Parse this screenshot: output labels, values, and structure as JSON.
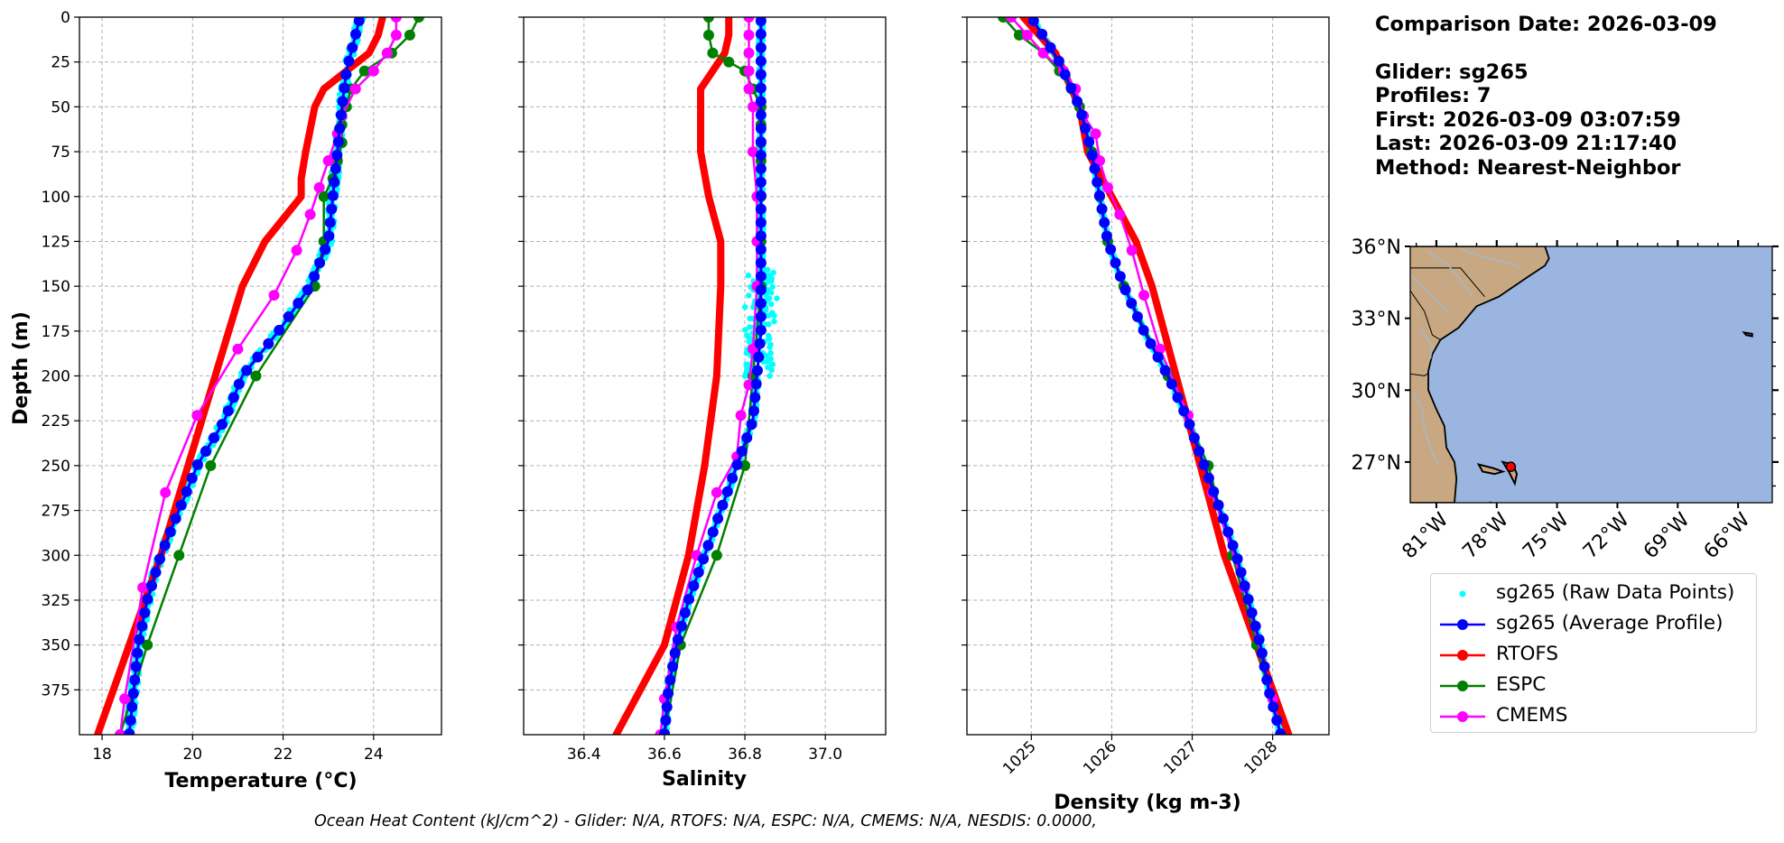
{
  "info": {
    "comparison_date": "Comparison Date: 2026-03-09",
    "glider": "Glider: sg265",
    "profiles": "Profiles: 7",
    "first": "First: 2026-03-09 03:07:59",
    "last": "Last: 2026-03-09 21:17:40",
    "method": "Method: Nearest-Neighbor"
  },
  "footer": "Ocean Heat Content (kJ/cm^2) - Glider: N/A,  RTOFS: N/A,  ESPC: N/A,  CMEMS: N/A,  NESDIS: 0.0000,",
  "legend": [
    {
      "label": "sg265 (Raw Data Points)",
      "color": "#00ffff",
      "style": "dot"
    },
    {
      "label": "sg265 (Average Profile)",
      "color": "#0000ff",
      "style": "line-marker"
    },
    {
      "label": "RTOFS",
      "color": "#ff0000",
      "style": "line-marker"
    },
    {
      "label": "ESPC",
      "color": "#008000",
      "style": "line-marker"
    },
    {
      "label": "CMEMS",
      "color": "#ff00ff",
      "style": "line-marker"
    }
  ],
  "colors": {
    "raw": "#00ffff",
    "average": "#0000ff",
    "rtofs": "#ff0000",
    "espc": "#008000",
    "cmems": "#ff00ff",
    "land": "#c8a882",
    "ocean": "#99b5e0"
  },
  "chart_data": [
    {
      "type": "line",
      "xlabel": "Temperature (°C)",
      "ylabel": "Depth (m)",
      "xlim": [
        17.5,
        25.5
      ],
      "ylim": [
        400,
        0
      ],
      "xticks": [
        18,
        20,
        22,
        24
      ],
      "yticks": [
        0,
        25,
        50,
        75,
        100,
        125,
        150,
        175,
        200,
        225,
        250,
        275,
        300,
        325,
        350,
        375
      ],
      "grid": true,
      "series": [
        {
          "name": "RTOFS",
          "depth": [
            0,
            10,
            20,
            30,
            40,
            50,
            75,
            90,
            100,
            125,
            150,
            200,
            250,
            300,
            350,
            400
          ],
          "values": [
            24.2,
            24.1,
            23.9,
            23.4,
            22.9,
            22.7,
            22.5,
            22.4,
            22.4,
            21.6,
            21.1,
            20.5,
            19.9,
            19.3,
            18.6,
            17.9
          ]
        },
        {
          "name": "ESPC",
          "depth": [
            0,
            10,
            20,
            30,
            40,
            50,
            60,
            70,
            80,
            90,
            100,
            125,
            150,
            200,
            250,
            300,
            350,
            400
          ],
          "values": [
            25.0,
            24.8,
            24.4,
            23.8,
            23.5,
            23.4,
            23.3,
            23.3,
            23.2,
            23.1,
            22.9,
            22.9,
            22.7,
            21.4,
            20.4,
            19.7,
            19.0,
            18.4
          ]
        },
        {
          "name": "CMEMS",
          "depth": [
            0,
            10,
            20,
            30,
            40,
            55,
            65,
            80,
            95,
            110,
            130,
            155,
            185,
            222,
            265,
            318,
            380,
            400
          ],
          "values": [
            24.5,
            24.5,
            24.3,
            24.0,
            23.6,
            23.3,
            23.2,
            23.0,
            22.8,
            22.6,
            22.3,
            21.8,
            21.0,
            20.1,
            19.4,
            18.9,
            18.5,
            18.4
          ]
        },
        {
          "name": "sg265 (Average Profile)",
          "depth": [
            0,
            10,
            20,
            30,
            50,
            75,
            100,
            125,
            150,
            175,
            200,
            225,
            250,
            275,
            300,
            325,
            350,
            375,
            400
          ],
          "values": [
            23.7,
            23.6,
            23.5,
            23.4,
            23.3,
            23.2,
            23.1,
            23.0,
            22.6,
            21.9,
            21.1,
            20.7,
            20.1,
            19.7,
            19.3,
            19.0,
            18.8,
            18.7,
            18.6
          ]
        }
      ]
    },
    {
      "type": "line",
      "xlabel": "Salinity",
      "ylabel": "",
      "xlim": [
        36.25,
        37.15
      ],
      "ylim": [
        400,
        0
      ],
      "xticks": [
        36.4,
        36.6,
        36.8,
        37.0
      ],
      "grid": true,
      "series": [
        {
          "name": "RTOFS",
          "depth": [
            0,
            10,
            20,
            30,
            40,
            50,
            75,
            100,
            125,
            150,
            200,
            250,
            300,
            350,
            400
          ],
          "values": [
            36.76,
            36.76,
            36.75,
            36.72,
            36.69,
            36.69,
            36.69,
            36.71,
            36.74,
            36.74,
            36.73,
            36.7,
            36.66,
            36.6,
            36.48
          ]
        },
        {
          "name": "ESPC",
          "depth": [
            0,
            10,
            20,
            25,
            30,
            40,
            50,
            60,
            70,
            80,
            100,
            125,
            150,
            200,
            250,
            300,
            350,
            400
          ],
          "values": [
            36.71,
            36.71,
            36.72,
            36.76,
            36.8,
            36.82,
            36.84,
            36.84,
            36.84,
            36.84,
            36.84,
            36.84,
            36.84,
            36.82,
            36.8,
            36.73,
            36.64,
            36.6
          ]
        },
        {
          "name": "CMEMS",
          "depth": [
            0,
            10,
            20,
            30,
            40,
            50,
            75,
            100,
            125,
            150,
            185,
            205,
            222,
            245,
            265,
            300,
            340,
            380,
            400
          ],
          "values": [
            36.81,
            36.81,
            36.81,
            36.81,
            36.81,
            36.82,
            36.82,
            36.83,
            36.83,
            36.83,
            36.82,
            36.81,
            36.79,
            36.78,
            36.73,
            36.68,
            36.63,
            36.6,
            36.59
          ]
        },
        {
          "name": "sg265 (Average Profile)",
          "depth": [
            0,
            25,
            50,
            75,
            100,
            125,
            150,
            175,
            200,
            225,
            250,
            275,
            300,
            325,
            350,
            375,
            400
          ],
          "values": [
            36.84,
            36.84,
            36.84,
            36.84,
            36.84,
            36.84,
            36.84,
            36.84,
            36.83,
            36.82,
            36.78,
            36.74,
            36.7,
            36.66,
            36.63,
            36.61,
            36.6
          ]
        }
      ]
    },
    {
      "type": "line",
      "xlabel": "Density (kg m-3)",
      "ylabel": "",
      "xlim": [
        1024.2,
        1028.7
      ],
      "ylim": [
        400,
        0
      ],
      "xticks": [
        1025,
        1026,
        1027,
        1028
      ],
      "grid": true,
      "series": [
        {
          "name": "RTOFS",
          "depth": [
            0,
            10,
            20,
            30,
            40,
            50,
            75,
            100,
            125,
            150,
            200,
            250,
            300,
            350,
            400
          ],
          "values": [
            1024.9,
            1025.1,
            1025.3,
            1025.4,
            1025.5,
            1025.6,
            1025.7,
            1026.0,
            1026.3,
            1026.5,
            1026.8,
            1027.1,
            1027.4,
            1027.8,
            1028.2
          ]
        },
        {
          "name": "ESPC",
          "depth": [
            0,
            10,
            20,
            30,
            40,
            50,
            75,
            100,
            125,
            150,
            200,
            250,
            300,
            350,
            400
          ],
          "values": [
            1024.65,
            1024.85,
            1025.15,
            1025.35,
            1025.5,
            1025.6,
            1025.75,
            1025.85,
            1025.95,
            1026.15,
            1026.7,
            1027.2,
            1027.5,
            1027.8,
            1028.1
          ]
        },
        {
          "name": "CMEMS",
          "depth": [
            0,
            10,
            20,
            30,
            40,
            55,
            65,
            80,
            95,
            110,
            130,
            155,
            185,
            222,
            265,
            318,
            380,
            400
          ],
          "values": [
            1024.75,
            1024.95,
            1025.15,
            1025.4,
            1025.55,
            1025.65,
            1025.8,
            1025.85,
            1025.95,
            1026.1,
            1026.25,
            1026.4,
            1026.6,
            1026.95,
            1027.25,
            1027.65,
            1028.0,
            1028.1
          ]
        },
        {
          "name": "sg265 (Average Profile)",
          "depth": [
            0,
            25,
            50,
            75,
            100,
            125,
            150,
            175,
            200,
            225,
            250,
            275,
            300,
            325,
            350,
            375,
            400
          ],
          "values": [
            1025.0,
            1025.35,
            1025.6,
            1025.75,
            1025.85,
            1025.95,
            1026.15,
            1026.4,
            1026.7,
            1026.95,
            1027.15,
            1027.35,
            1027.55,
            1027.7,
            1027.85,
            1027.95,
            1028.1
          ]
        }
      ]
    },
    {
      "type": "map",
      "lat_range": [
        25.3,
        36.0
      ],
      "lon_range": [
        -82.3,
        -64.3
      ],
      "lat_ticks": [
        36,
        33,
        30,
        27
      ],
      "lon_ticks": [
        -81,
        -78,
        -75,
        -72,
        -69,
        -66
      ],
      "lat_tick_labels": [
        "36°N",
        "33°N",
        "30°N",
        "27°N"
      ],
      "lon_tick_labels": [
        "81°W",
        "78°W",
        "75°W",
        "72°W",
        "69°W",
        "66°W"
      ],
      "glider_position": {
        "lat": 26.8,
        "lon": -77.3
      }
    }
  ]
}
